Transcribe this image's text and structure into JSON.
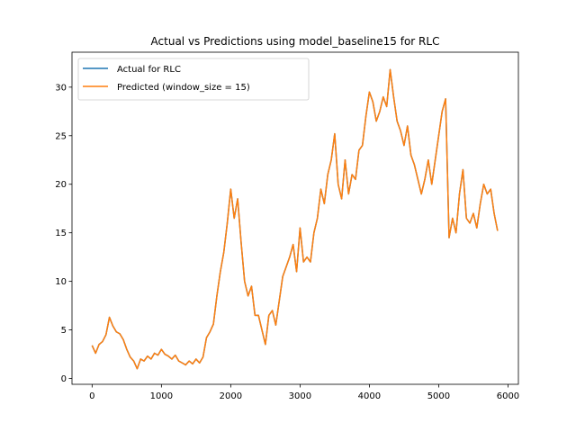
{
  "chart_data": {
    "type": "line",
    "title": "Actual vs Predictions using model_baseline15 for RLC",
    "xlabel": "",
    "ylabel": "",
    "xlim": [
      -290,
      6150
    ],
    "ylim": [
      -0.6,
      33.6
    ],
    "x_ticks": [
      0,
      1000,
      2000,
      3000,
      4000,
      5000,
      6000
    ],
    "y_ticks": [
      0,
      5,
      10,
      15,
      20,
      25,
      30
    ],
    "grid": false,
    "legend_position": "upper-left",
    "series": [
      {
        "name": "Actual for RLC",
        "color": "#1f77b4",
        "x": [
          0,
          50,
          100,
          150,
          200,
          250,
          300,
          350,
          400,
          450,
          500,
          550,
          600,
          650,
          700,
          750,
          800,
          850,
          900,
          950,
          1000,
          1050,
          1100,
          1150,
          1200,
          1250,
          1300,
          1350,
          1400,
          1450,
          1500,
          1550,
          1600,
          1650,
          1700,
          1750,
          1800,
          1850,
          1900,
          1950,
          2000,
          2050,
          2100,
          2150,
          2200,
          2250,
          2300,
          2350,
          2400,
          2450,
          2500,
          2550,
          2600,
          2650,
          2700,
          2750,
          2800,
          2850,
          2900,
          2950,
          3000,
          3050,
          3100,
          3150,
          3200,
          3250,
          3300,
          3350,
          3400,
          3450,
          3500,
          3550,
          3600,
          3650,
          3700,
          3750,
          3800,
          3850,
          3900,
          3950,
          4000,
          4050,
          4100,
          4150,
          4200,
          4250,
          4300,
          4350,
          4400,
          4450,
          4500,
          4550,
          4600,
          4650,
          4700,
          4750,
          4800,
          4850,
          4900,
          4950,
          5000,
          5050,
          5100,
          5150,
          5200,
          5250,
          5300,
          5350,
          5400,
          5450,
          5500,
          5550,
          5600,
          5650,
          5700,
          5750,
          5800,
          5850
        ],
        "values": [
          3.4,
          2.6,
          3.5,
          3.8,
          4.5,
          6.3,
          5.4,
          4.8,
          4.6,
          4.0,
          3.0,
          2.2,
          1.8,
          1.0,
          2.0,
          1.8,
          2.3,
          2.0,
          2.6,
          2.4,
          3.0,
          2.5,
          2.3,
          2.0,
          2.4,
          1.8,
          1.6,
          1.4,
          1.8,
          1.5,
          2.0,
          1.6,
          2.2,
          4.2,
          4.8,
          5.6,
          8.5,
          11.0,
          13.0,
          16.0,
          19.5,
          16.5,
          18.5,
          14.0,
          10.0,
          8.5,
          9.5,
          6.5,
          6.5,
          5.0,
          3.5,
          6.5,
          7.0,
          5.5,
          8.0,
          10.5,
          11.5,
          12.5,
          13.8,
          11.0,
          15.5,
          12.0,
          12.5,
          12.0,
          15.0,
          16.5,
          19.5,
          18.0,
          21.0,
          22.5,
          25.2,
          20.0,
          18.5,
          22.5,
          19.0,
          21.0,
          20.5,
          23.5,
          24.0,
          27.0,
          29.5,
          28.5,
          26.5,
          27.5,
          29.0,
          28.0,
          31.8,
          29.0,
          26.5,
          25.5,
          24.0,
          26.0,
          23.0,
          22.0,
          20.5,
          19.0,
          20.5,
          22.5,
          20.0,
          22.5,
          25.0,
          27.5,
          28.8,
          14.5,
          16.5,
          15.0,
          19.0,
          21.5,
          16.5,
          16.0,
          17.0,
          15.5,
          18.0,
          20.0,
          19.0,
          19.5,
          17.0,
          15.2
        ]
      },
      {
        "name": "Predicted (window_size = 15)",
        "color": "#ff7f0e",
        "x": [
          0,
          50,
          100,
          150,
          200,
          250,
          300,
          350,
          400,
          450,
          500,
          550,
          600,
          650,
          700,
          750,
          800,
          850,
          900,
          950,
          1000,
          1050,
          1100,
          1150,
          1200,
          1250,
          1300,
          1350,
          1400,
          1450,
          1500,
          1550,
          1600,
          1650,
          1700,
          1750,
          1800,
          1850,
          1900,
          1950,
          2000,
          2050,
          2100,
          2150,
          2200,
          2250,
          2300,
          2350,
          2400,
          2450,
          2500,
          2550,
          2600,
          2650,
          2700,
          2750,
          2800,
          2850,
          2900,
          2950,
          3000,
          3050,
          3100,
          3150,
          3200,
          3250,
          3300,
          3350,
          3400,
          3450,
          3500,
          3550,
          3600,
          3650,
          3700,
          3750,
          3800,
          3850,
          3900,
          3950,
          4000,
          4050,
          4100,
          4150,
          4200,
          4250,
          4300,
          4350,
          4400,
          4450,
          4500,
          4550,
          4600,
          4650,
          4700,
          4750,
          4800,
          4850,
          4900,
          4950,
          5000,
          5050,
          5100,
          5150,
          5200,
          5250,
          5300,
          5350,
          5400,
          5450,
          5500,
          5550,
          5600,
          5650,
          5700,
          5750,
          5800,
          5850
        ],
        "values": [
          3.4,
          2.6,
          3.5,
          3.8,
          4.5,
          6.3,
          5.4,
          4.8,
          4.6,
          4.0,
          3.0,
          2.2,
          1.8,
          1.0,
          2.0,
          1.8,
          2.3,
          2.0,
          2.6,
          2.4,
          3.0,
          2.5,
          2.3,
          2.0,
          2.4,
          1.8,
          1.6,
          1.4,
          1.8,
          1.5,
          2.0,
          1.6,
          2.2,
          4.2,
          4.8,
          5.6,
          8.5,
          11.0,
          13.0,
          16.0,
          19.5,
          16.5,
          18.5,
          14.0,
          10.0,
          8.5,
          9.5,
          6.5,
          6.5,
          5.0,
          3.5,
          6.5,
          7.0,
          5.5,
          8.0,
          10.5,
          11.5,
          12.5,
          13.8,
          11.0,
          15.5,
          12.0,
          12.5,
          12.0,
          15.0,
          16.5,
          19.5,
          18.0,
          21.0,
          22.5,
          25.2,
          20.0,
          18.5,
          22.5,
          19.0,
          21.0,
          20.5,
          23.5,
          24.0,
          27.0,
          29.5,
          28.5,
          26.5,
          27.5,
          29.0,
          28.0,
          31.8,
          29.0,
          26.5,
          25.5,
          24.0,
          26.0,
          23.0,
          22.0,
          20.5,
          19.0,
          20.5,
          22.5,
          20.0,
          22.5,
          25.0,
          27.5,
          28.8,
          14.5,
          16.5,
          15.0,
          19.0,
          21.5,
          16.5,
          16.0,
          17.0,
          15.5,
          18.0,
          20.0,
          19.0,
          19.5,
          17.0,
          15.2
        ]
      }
    ]
  }
}
